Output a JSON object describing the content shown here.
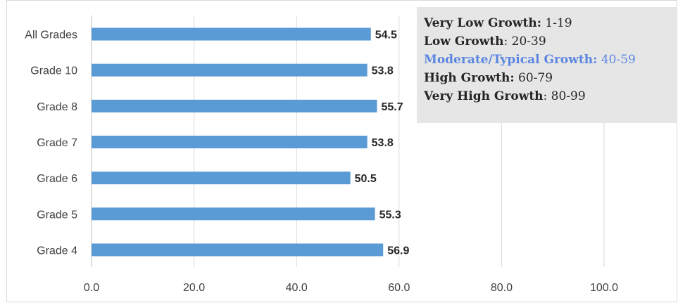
{
  "chart_data": {
    "type": "bar",
    "orientation": "horizontal",
    "categories": [
      "All Grades",
      "Grade 10",
      "Grade 8",
      "Grade 7",
      "Grade 6",
      "Grade 5",
      "Grade 4"
    ],
    "values": [
      54.5,
      53.8,
      55.7,
      53.8,
      50.5,
      55.3,
      56.9
    ],
    "value_labels": [
      "54.5",
      "53.8",
      "55.7",
      "53.8",
      "50.5",
      "55.3",
      "56.9"
    ],
    "x_ticks": [
      "0.0",
      "20.0",
      "40.0",
      "60.0",
      "80.0",
      "100.0"
    ],
    "xlim": [
      0,
      100
    ],
    "grid": "vertical",
    "bar_color": "#5b9bd5",
    "title": "",
    "xlabel": "",
    "ylabel": ""
  },
  "legend": {
    "highlight_color": "#5b86e0",
    "items": [
      {
        "name": "Very Low Growth:",
        "range": "1-19",
        "highlight": false
      },
      {
        "name": "Low Growth",
        "range": ": 20-39",
        "highlight": false
      },
      {
        "name": "Moderate/Typical Growth:",
        "range": "40-59",
        "highlight": true
      },
      {
        "name": "High Growth:",
        "range": "60-79",
        "highlight": false
      },
      {
        "name": "Very High Growth",
        "range": ": 80-99",
        "highlight": false
      }
    ]
  }
}
